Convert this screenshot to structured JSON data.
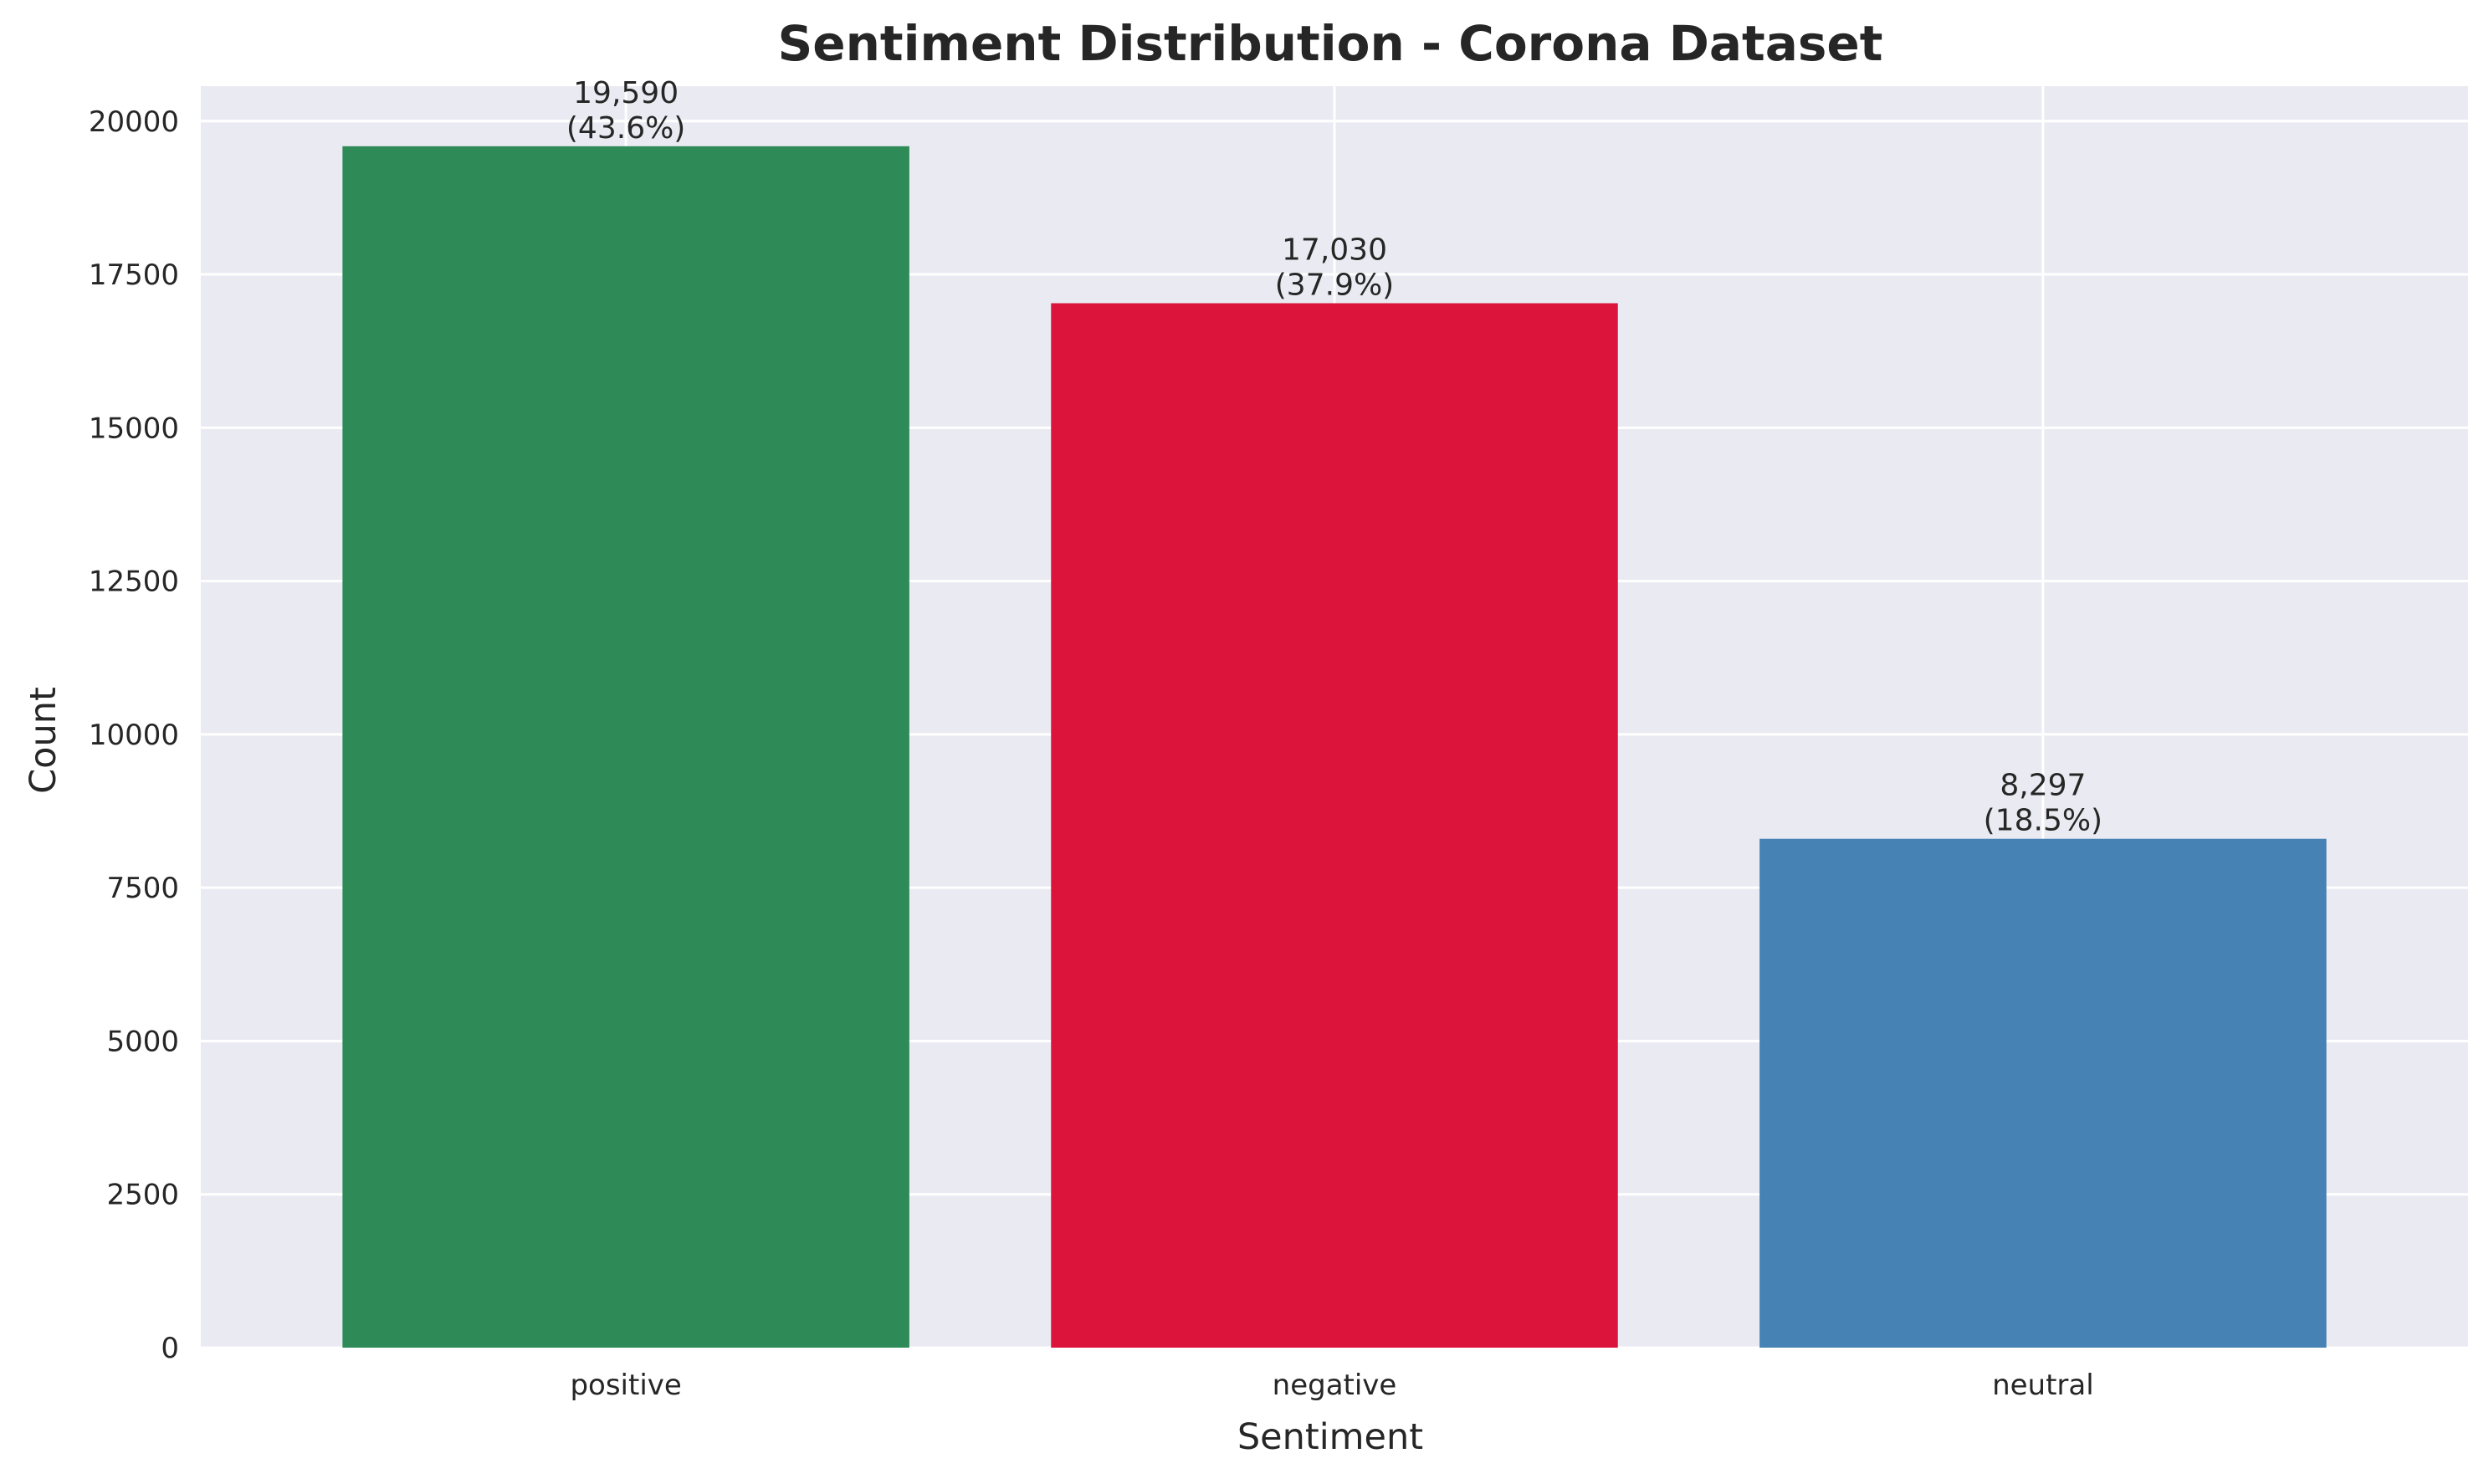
{
  "chart_data": {
    "type": "bar",
    "title": "Sentiment Distribution - Corona Dataset",
    "xlabel": "Sentiment",
    "ylabel": "Count",
    "categories": [
      "positive",
      "negative",
      "neutral"
    ],
    "values": [
      19590,
      17030,
      8297
    ],
    "data_labels": [
      {
        "count": "19,590",
        "percent": "(43.6%)"
      },
      {
        "count": "17,030",
        "percent": "(37.9%)"
      },
      {
        "count": "8,297",
        "percent": "(18.5%)"
      }
    ],
    "colors": [
      "#2e8b57",
      "#dc143c",
      "#4682b4"
    ],
    "ylim": [
      0,
      20569.5
    ],
    "yticks": [
      0,
      2500,
      5000,
      7500,
      10000,
      12500,
      15000,
      17500,
      20000
    ],
    "ytick_labels": [
      "0",
      "2500",
      "5000",
      "7500",
      "10000",
      "12500",
      "15000",
      "17500",
      "20000"
    ],
    "grid": true,
    "background": "#eaeaf2",
    "gridline_color": "#ffffff",
    "text_color": "#262626"
  }
}
